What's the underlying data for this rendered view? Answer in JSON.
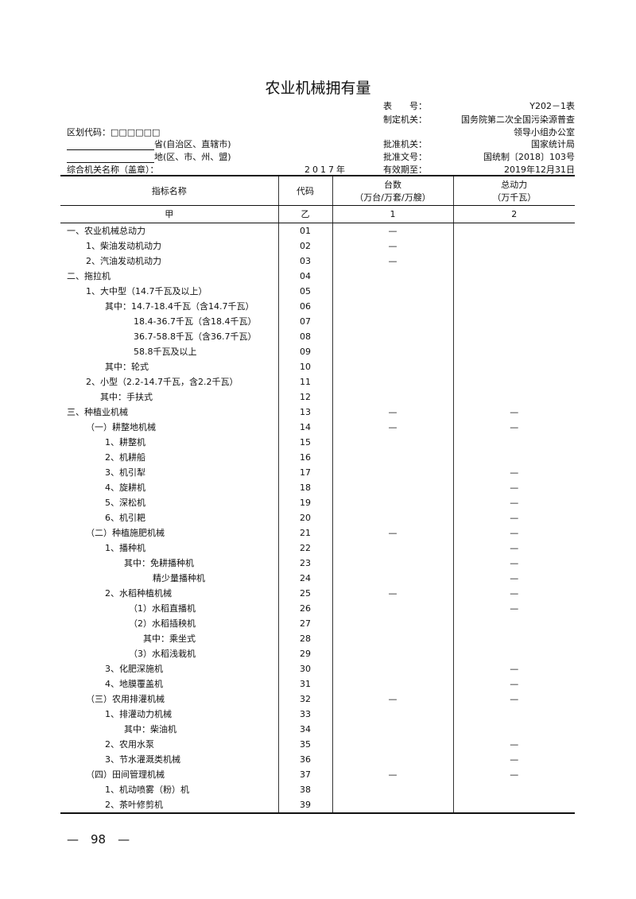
{
  "title": "农业机械拥有量",
  "meta": {
    "table_no_label": "表　　号：",
    "table_no": "Y202－1表",
    "maker_label": "制定机关：",
    "maker": "国务院第二次全国污染源普查",
    "maker2": "领导小组办公室",
    "approver_label": "批准机关：",
    "approver": "国家统计局",
    "approval_no_label": "批准文号：",
    "approval_no": "国统制〔2018〕103号",
    "valid_label": "有效期至：",
    "valid": "2019年12月31日",
    "region_code_label": "区划代码：□□□□□□",
    "province_label": "省(自治区、直辖市)",
    "district_label": "地(区、市、州、盟)",
    "org_label": "综合机关名称（盖章）：",
    "year": "2017年"
  },
  "table": {
    "headers": {
      "name": "指标名称",
      "code": "代码",
      "c1a": "台数",
      "c1b": "（万台/万套/万艘）",
      "c2a": "总动力",
      "c2b": "（万千瓦）"
    },
    "subheader": {
      "name": "甲",
      "code": "乙",
      "c1": "1",
      "c2": "2"
    },
    "rows": [
      {
        "name": "一、农业机械总动力",
        "code": "01",
        "c1": "—",
        "c2": ""
      },
      {
        "name": "1、柴油发动机动力",
        "code": "02",
        "c1": "—",
        "c2": ""
      },
      {
        "name": "2、汽油发动机动力",
        "code": "03",
        "c1": "—",
        "c2": ""
      },
      {
        "name": "二、拖拉机",
        "code": "04",
        "c1": "",
        "c2": ""
      },
      {
        "name": "1、大中型（14.7千瓦及以上）",
        "code": "05",
        "c1": "",
        "c2": ""
      },
      {
        "name": "其中：14.7-18.4千瓦（含14.7千瓦）",
        "code": "06",
        "c1": "",
        "c2": ""
      },
      {
        "name": "18.4-36.7千瓦（含18.4千瓦）",
        "code": "07",
        "c1": "",
        "c2": ""
      },
      {
        "name": "36.7-58.8千瓦（含36.7千瓦）",
        "code": "08",
        "c1": "",
        "c2": ""
      },
      {
        "name": "58.8千瓦及以上",
        "code": "09",
        "c1": "",
        "c2": ""
      },
      {
        "name": "其中：轮式",
        "code": "10",
        "c1": "",
        "c2": ""
      },
      {
        "name": "2、小型（2.2-14.7千瓦，含2.2千瓦）",
        "code": "11",
        "c1": "",
        "c2": ""
      },
      {
        "name": "其中：手扶式",
        "code": "12",
        "c1": "",
        "c2": ""
      },
      {
        "name": "三、种植业机械",
        "code": "13",
        "c1": "—",
        "c2": "—"
      },
      {
        "name": "（一）耕整地机械",
        "code": "14",
        "c1": "—",
        "c2": "—"
      },
      {
        "name": "1、耕整机",
        "code": "15",
        "c1": "",
        "c2": ""
      },
      {
        "name": "2、机耕船",
        "code": "16",
        "c1": "",
        "c2": ""
      },
      {
        "name": "3、机引犁",
        "code": "17",
        "c1": "",
        "c2": "—"
      },
      {
        "name": "4、旋耕机",
        "code": "18",
        "c1": "",
        "c2": "—"
      },
      {
        "name": "5、深松机",
        "code": "19",
        "c1": "",
        "c2": "—"
      },
      {
        "name": "6、机引耙",
        "code": "20",
        "c1": "",
        "c2": "—"
      },
      {
        "name": "（二）种植施肥机械",
        "code": "21",
        "c1": "—",
        "c2": "—"
      },
      {
        "name": "1、播种机",
        "code": "22",
        "c1": "",
        "c2": "—"
      },
      {
        "name": "其中：免耕播种机",
        "code": "23",
        "c1": "",
        "c2": "—"
      },
      {
        "name": "精少量播种机",
        "code": "24",
        "c1": "",
        "c2": "—"
      },
      {
        "name": "2、水稻种植机械",
        "code": "25",
        "c1": "—",
        "c2": "—"
      },
      {
        "name": "（1）水稻直播机",
        "code": "26",
        "c1": "",
        "c2": "—"
      },
      {
        "name": "（2）水稻插秧机",
        "code": "27",
        "c1": "",
        "c2": ""
      },
      {
        "name": "其中：乘坐式",
        "code": "28",
        "c1": "",
        "c2": ""
      },
      {
        "name": "（3）水稻浅栽机",
        "code": "29",
        "c1": "",
        "c2": ""
      },
      {
        "name": "3、化肥深施机",
        "code": "30",
        "c1": "",
        "c2": "—"
      },
      {
        "name": "4、地膜覆盖机",
        "code": "31",
        "c1": "",
        "c2": "—"
      },
      {
        "name": "（三）农用排灌机械",
        "code": "32",
        "c1": "—",
        "c2": "—"
      },
      {
        "name": "1、排灌动力机械",
        "code": "33",
        "c1": "",
        "c2": ""
      },
      {
        "name": "其中：柴油机",
        "code": "34",
        "c1": "",
        "c2": ""
      },
      {
        "name": "2、农用水泵",
        "code": "35",
        "c1": "",
        "c2": "—"
      },
      {
        "name": "3、节水灌溉类机械",
        "code": "36",
        "c1": "",
        "c2": "—"
      },
      {
        "name": "（四）田间管理机械",
        "code": "37",
        "c1": "—",
        "c2": "—"
      },
      {
        "name": "1、机动喷雾（粉）机",
        "code": "38",
        "c1": "",
        "c2": ""
      },
      {
        "name": "2、茶叶修剪机",
        "code": "39",
        "c1": "",
        "c2": ""
      }
    ]
  },
  "footer": {
    "page": "—　98　—"
  }
}
